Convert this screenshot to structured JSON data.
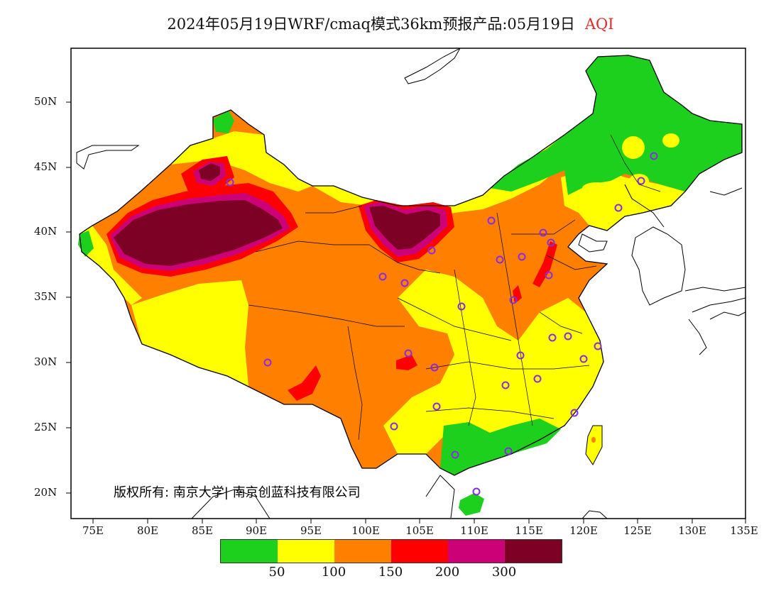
{
  "title": {
    "text": "2024年05月19日WRF/cmaq模式36km预报产品:05月19日",
    "variable": "AQI"
  },
  "axes": {
    "y_ticks": [
      "50N",
      "45N",
      "40N",
      "35N",
      "30N",
      "25N",
      "20N"
    ],
    "x_ticks": [
      "75E",
      "80E",
      "85E",
      "90E",
      "95E",
      "100E",
      "105E",
      "110E",
      "115E",
      "120E",
      "125E",
      "130E",
      "135E"
    ]
  },
  "copyright": "版权所有: 南京大学| 南京创蓝科技有限公司",
  "legend": {
    "colors": [
      "#1ed01e",
      "#ffff00",
      "#ff7f00",
      "#ff0000",
      "#cc0077",
      "#7d0025"
    ],
    "labels": [
      "50",
      "100",
      "150",
      "200",
      "300"
    ]
  },
  "colors": {
    "sea": "#ffffff",
    "border": "#000000",
    "marker": "#8a2be2",
    "title_variable": "#e02a2a"
  }
}
